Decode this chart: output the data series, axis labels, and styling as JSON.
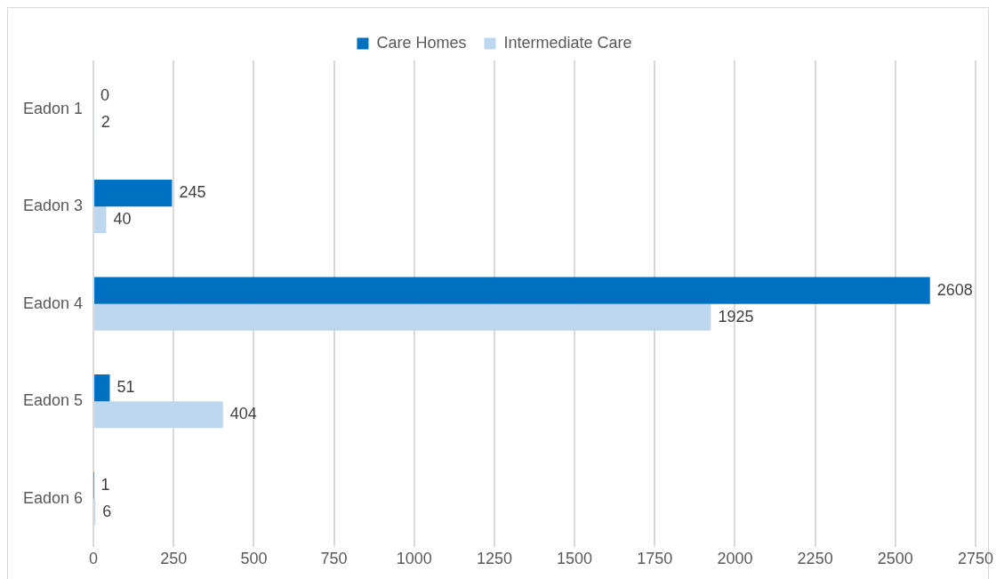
{
  "chart_data": {
    "type": "bar",
    "orientation": "horizontal",
    "categories": [
      "Eadon 1",
      "Eadon 3",
      "Eadon 4",
      "Eadon 5",
      "Eadon 6"
    ],
    "series": [
      {
        "name": "Care Homes",
        "color": "#0070c0",
        "values": [
          0,
          245,
          2608,
          51,
          1
        ]
      },
      {
        "name": "Intermediate Care",
        "color": "#bdd7ee",
        "values": [
          2,
          40,
          1925,
          404,
          6
        ]
      }
    ],
    "xlim": [
      0,
      2750
    ],
    "xticks": [
      0,
      250,
      500,
      750,
      1000,
      1250,
      1500,
      1750,
      2000,
      2250,
      2500,
      2750
    ],
    "grid": "x",
    "legend": "top",
    "data_labels": true
  }
}
